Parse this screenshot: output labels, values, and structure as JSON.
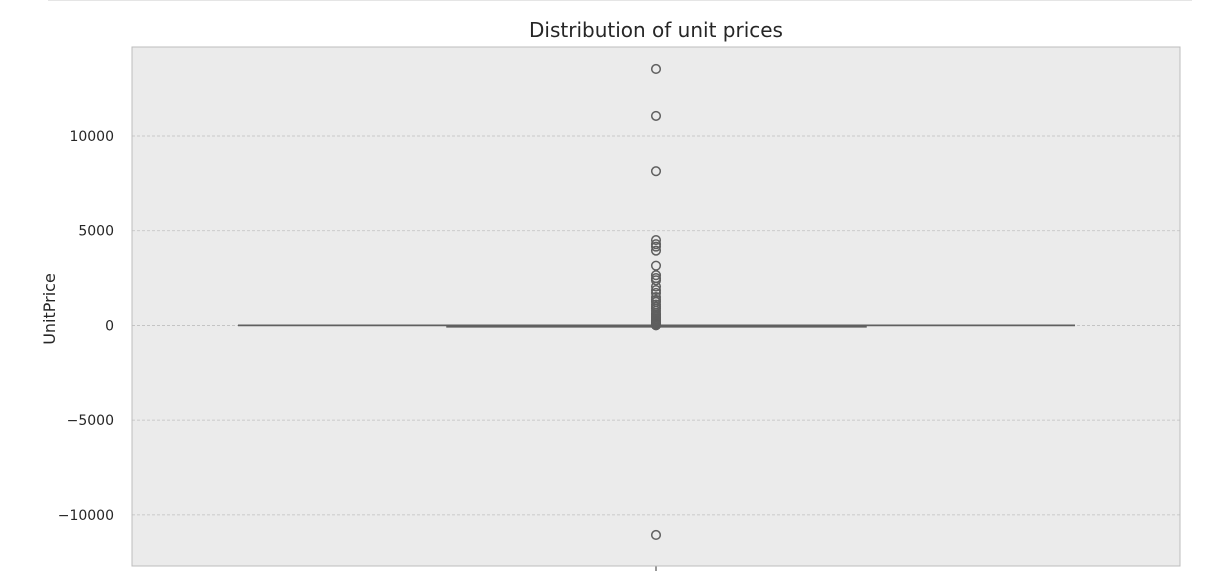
{
  "chart_data": {
    "type": "box",
    "title": "Distribution of unit prices",
    "xlabel": "",
    "ylabel": "UnitPrice",
    "ylim": [
      -12700,
      14700
    ],
    "yticks": [
      -10000,
      -5000,
      0,
      5000,
      10000
    ],
    "ytick_labels": [
      "−10000",
      "−5000",
      "0",
      "5000",
      "10000"
    ],
    "grid": true,
    "box": {
      "q1": 1.25,
      "median": 2.08,
      "q3": 4.13,
      "whisker_low": -2.93,
      "whisker_high": 8.45
    },
    "outliers": [
      13541,
      11062,
      8142,
      4505,
      4288,
      4161,
      3949,
      3155,
      2653,
      2500,
      2382,
      2053,
      1867,
      1715,
      1500,
      1350,
      1241,
      1100,
      995,
      887,
      766,
      650,
      570,
      500,
      430,
      360,
      295,
      240,
      190,
      150,
      120,
      95,
      75,
      60,
      48,
      40,
      33,
      27,
      22,
      18,
      15,
      13,
      -11062
    ],
    "colors": {
      "face": "#ebebeb",
      "grid": "#bfbfbf",
      "frame": "#bcbcbc",
      "box_line": "#5f5f5f",
      "outlier": "#5f5f5f"
    }
  }
}
